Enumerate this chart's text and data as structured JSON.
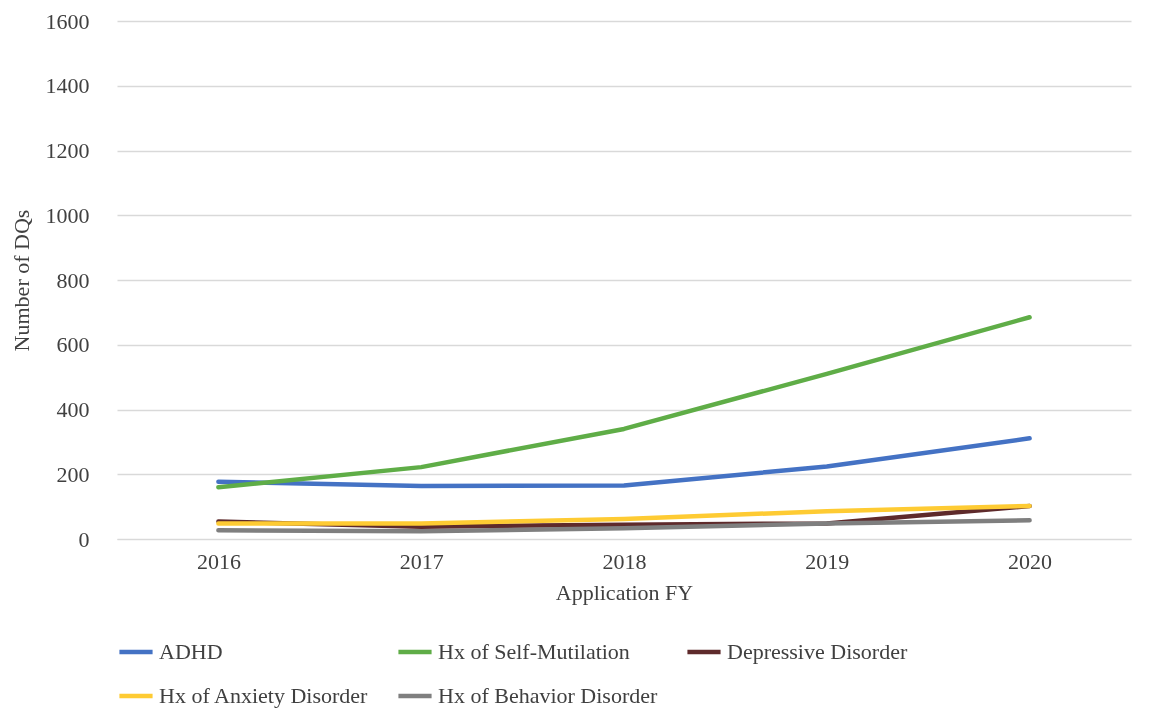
{
  "chart_data": {
    "type": "line",
    "xlabel": "Application FY",
    "ylabel": "Number of DQs",
    "categories": [
      "2016",
      "2017",
      "2018",
      "2019",
      "2020"
    ],
    "series": [
      {
        "name": "ADHD",
        "color": "#4472c4",
        "values": [
          177,
          164,
          165,
          224,
          311
        ]
      },
      {
        "name": "Hx of Self-Mutilation",
        "color": "#5fad47",
        "values": [
          160,
          222,
          340,
          510,
          685
        ]
      },
      {
        "name": "Depressive Disorder",
        "color": "#5e2a2b",
        "values": [
          54,
          38,
          44,
          48,
          102
        ]
      },
      {
        "name": "Hx of Anxiety Disorder",
        "color": "#fecb33",
        "values": [
          48,
          48,
          62,
          86,
          102
        ]
      },
      {
        "name": "Hx of Behavior Disorder",
        "color": "#7f7f7f",
        "values": [
          27,
          24,
          33,
          48,
          58
        ]
      }
    ],
    "ylim": [
      0,
      1600
    ],
    "yticks": [
      0,
      200,
      400,
      600,
      800,
      1000,
      1200,
      1400,
      1600
    ],
    "grid": "y",
    "legend": "bottom",
    "marker": "none",
    "line_style": "solid"
  }
}
